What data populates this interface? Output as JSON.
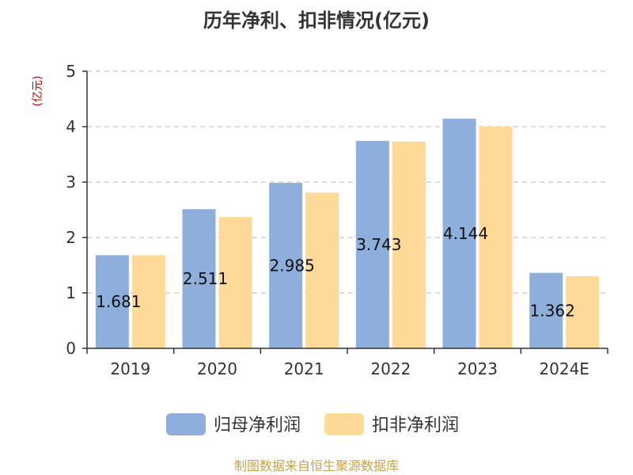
{
  "chart_data": {
    "type": "bar",
    "title": "历年净利、扣非情况(亿元)",
    "ylabel": "(亿元)",
    "categories": [
      "2019",
      "2020",
      "2021",
      "2022",
      "2023",
      "2024E"
    ],
    "ylim": [
      0,
      5
    ],
    "yticks": [
      "0",
      "1",
      "2",
      "3",
      "4",
      "5"
    ],
    "grid": true,
    "legend_position": "bottom",
    "series": [
      {
        "name": "归母净利润",
        "color": "#8eaedb",
        "values": [
          1.681,
          2.511,
          2.985,
          3.743,
          4.144,
          1.362
        ],
        "labels": [
          "1.681",
          "2.511",
          "2.985",
          "3.743",
          "4.144",
          "1.362"
        ]
      },
      {
        "name": "扣非净利润",
        "color": "#ffd998",
        "values": [
          1.68,
          2.37,
          2.81,
          3.73,
          4.0,
          1.3
        ]
      }
    ]
  },
  "footer": {
    "source": "制图数据来自恒生聚源数据库"
  }
}
